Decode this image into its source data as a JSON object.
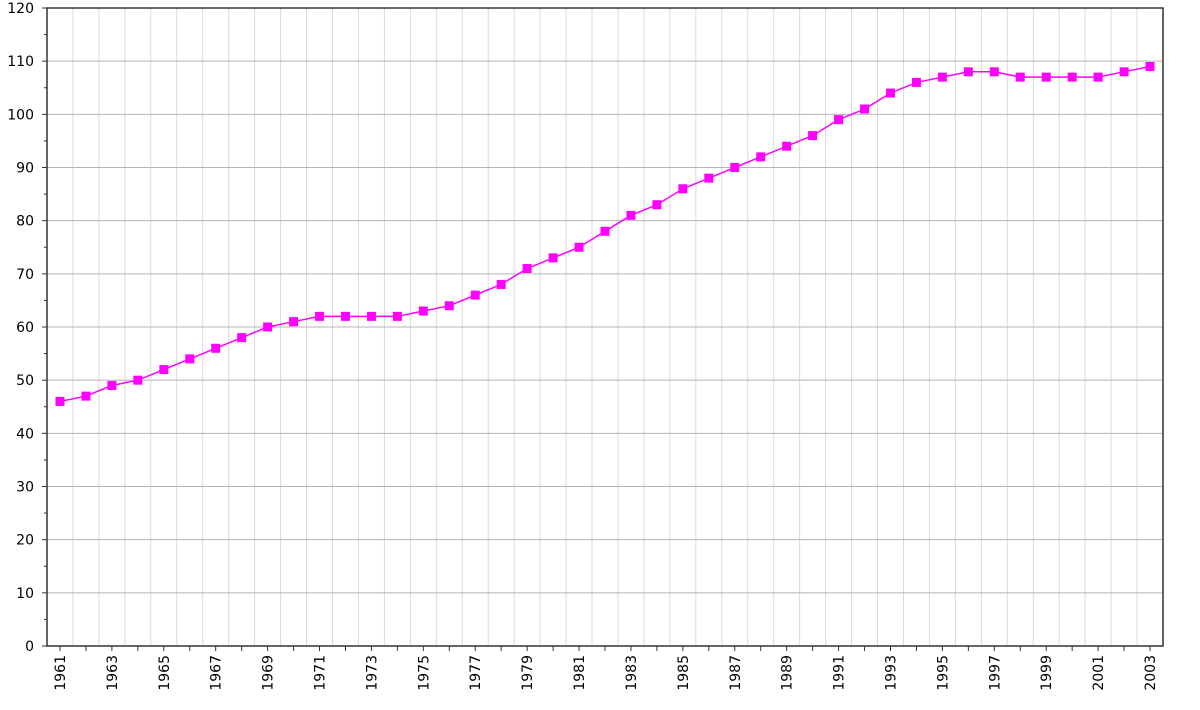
{
  "chart_data": {
    "type": "line",
    "title": "",
    "xlabel": "",
    "ylabel": "",
    "x": [
      1961,
      1962,
      1963,
      1964,
      1965,
      1966,
      1967,
      1968,
      1969,
      1970,
      1971,
      1972,
      1973,
      1974,
      1975,
      1976,
      1977,
      1978,
      1979,
      1980,
      1981,
      1982,
      1983,
      1984,
      1985,
      1986,
      1987,
      1988,
      1989,
      1990,
      1991,
      1992,
      1993,
      1994,
      1995,
      1996,
      1997,
      1998,
      1999,
      2000,
      2001,
      2002,
      2003
    ],
    "series": [
      {
        "values": [
          46,
          47,
          49,
          50,
          52,
          54,
          56,
          58,
          60,
          61,
          62,
          62,
          62,
          62,
          63,
          64,
          66,
          68,
          71,
          73,
          75,
          78,
          81,
          83,
          86,
          88,
          90,
          92,
          94,
          96,
          99,
          101,
          104,
          106,
          107,
          108,
          108,
          107,
          107,
          107,
          107,
          108,
          109
        ],
        "color": "#ff00ff",
        "marker": "square"
      }
    ],
    "xlim": [
      1960.5,
      2003.5
    ],
    "ylim": [
      0,
      120
    ],
    "yticks": [
      0,
      10,
      20,
      30,
      40,
      50,
      60,
      70,
      80,
      90,
      100,
      110,
      120
    ],
    "ytick_labels": [
      "0",
      "10",
      "20",
      "30",
      "40",
      "50",
      "60",
      "70",
      "80",
      "90",
      "100",
      "110",
      "120"
    ],
    "xtick_labels": [
      "1961",
      "1963",
      "1965",
      "1967",
      "1969",
      "1971",
      "1973",
      "1975",
      "1977",
      "1979",
      "1981",
      "1983",
      "1985",
      "1987",
      "1989",
      "1991",
      "1993",
      "1995",
      "1997",
      "1999",
      "2001",
      "2003"
    ],
    "grid": true,
    "legend": "none"
  }
}
